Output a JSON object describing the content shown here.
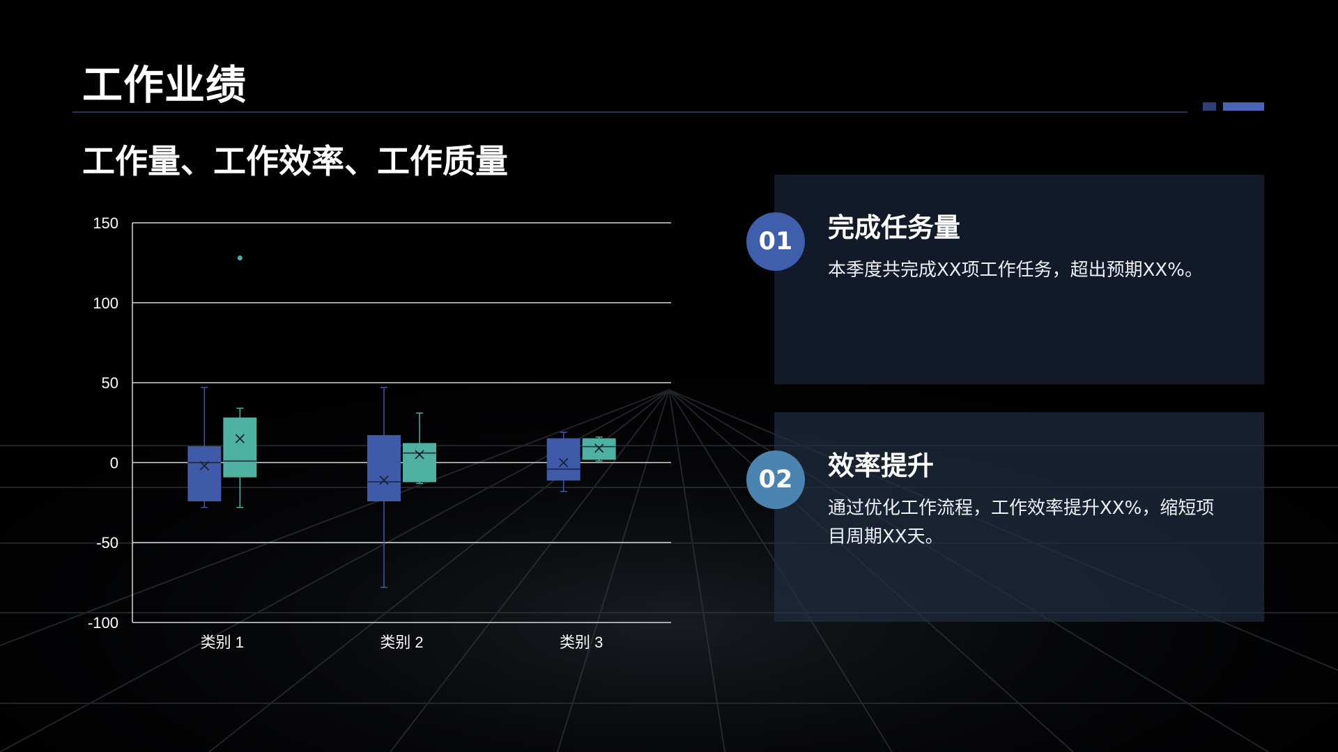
{
  "slide": {
    "title": "工作业绩",
    "subtitle": "工作量、工作效率、工作质量"
  },
  "cards": [
    {
      "number": "01",
      "heading": "完成任务量",
      "text": "本季度共完成XX项工作任务，超出预期XX%。"
    },
    {
      "number": "02",
      "heading": "效率提升",
      "text": "通过优化工作流程，工作效率提升XX%，缩短项目周期XX天。"
    }
  ],
  "colors": {
    "background": "#010102",
    "series_1": "#3f5aa8",
    "series_2": "#4fb1a1",
    "gridline": "#d9d9d9",
    "axis_text": "#ffffff",
    "circle_1": "#3f5fad",
    "circle_2": "#4b84b0"
  },
  "chart_data": {
    "type": "box",
    "categories": [
      "类别 1",
      "类别 2",
      "类别 3"
    ],
    "ylim": [
      -100,
      150
    ],
    "yticks": [
      150,
      100,
      50,
      0,
      -50,
      -100
    ],
    "grid": true,
    "legend": "none",
    "series": [
      {
        "color_key": "series_1",
        "boxes": [
          {
            "min": -28,
            "q1": -24,
            "median": 0,
            "q3": 10,
            "max": 47,
            "mean": -2,
            "outliers": []
          },
          {
            "min": -78,
            "q1": -24,
            "median": -12,
            "q3": 17,
            "max": 47,
            "mean": -11,
            "outliers": []
          },
          {
            "min": -18,
            "q1": -11,
            "median": -4,
            "q3": 15,
            "max": 19,
            "mean": 0,
            "outliers": []
          }
        ]
      },
      {
        "color_key": "series_2",
        "boxes": [
          {
            "min": -28,
            "q1": -9,
            "median": 1,
            "q3": 28,
            "max": 34,
            "mean": 15,
            "outliers": [
              128
            ]
          },
          {
            "min": -13,
            "q1": -12,
            "median": 6,
            "q3": 12,
            "max": 31,
            "mean": 5,
            "outliers": []
          },
          {
            "min": 1,
            "q1": 2,
            "median": 10,
            "q3": 15,
            "max": 16,
            "mean": 9,
            "outliers": []
          }
        ]
      }
    ]
  }
}
